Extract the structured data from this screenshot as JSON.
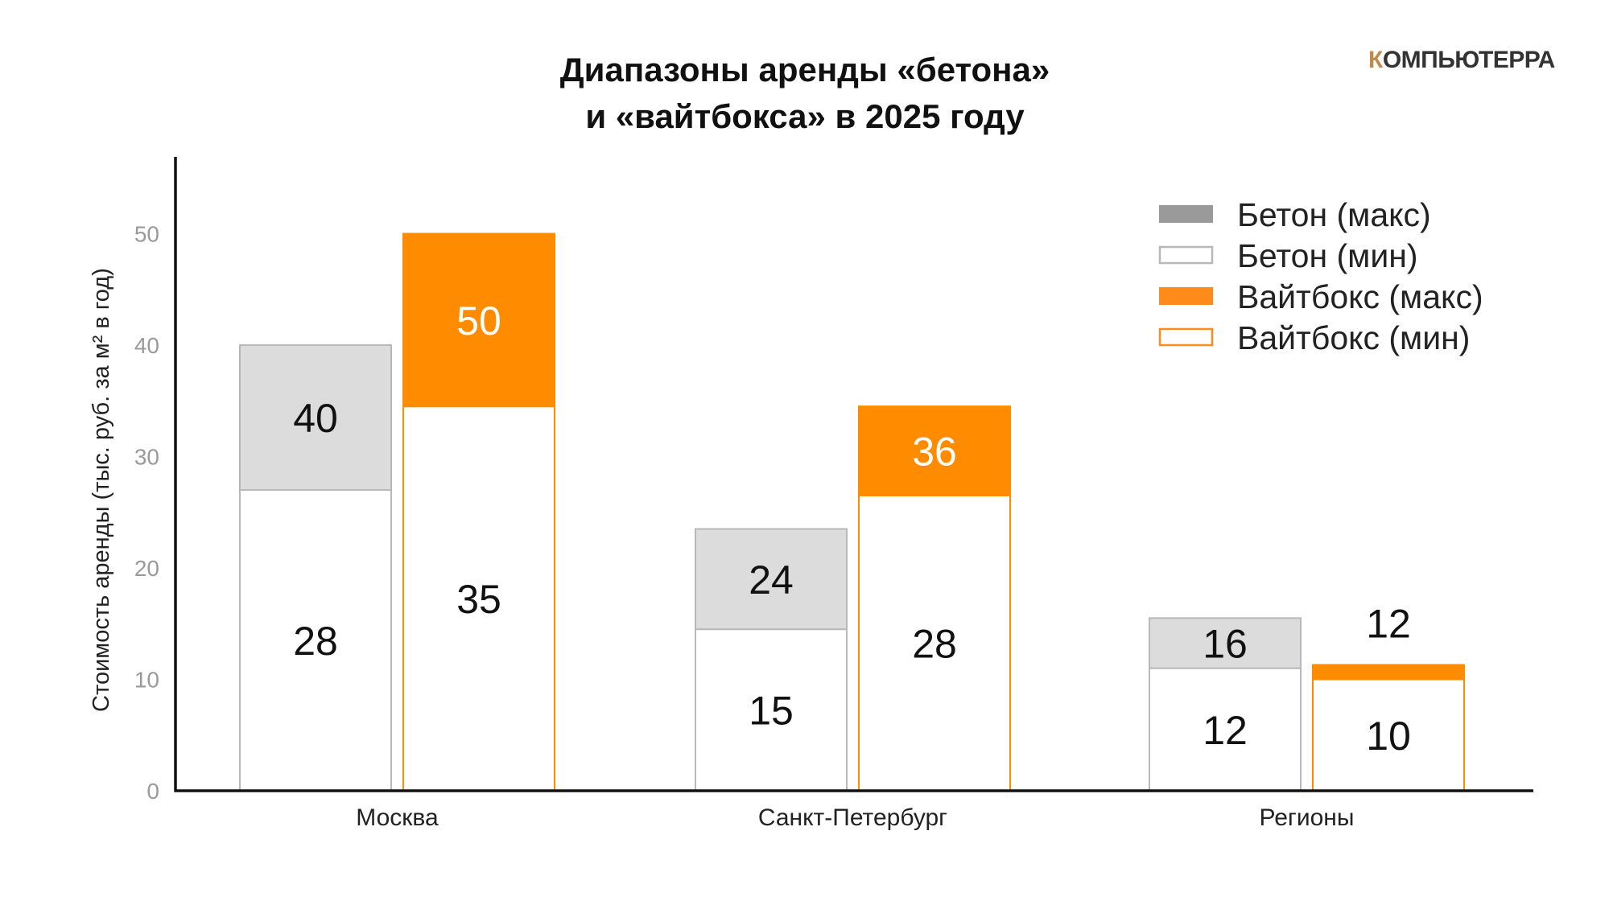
{
  "chart_data": {
    "type": "bar",
    "title_lines": [
      "Диапазоны аренды «бетона»",
      "и «вайтбокса» в 2025 году"
    ],
    "ylabel": "Стоимость аренды (тыс. руб. за м² в год)",
    "xlabel": "",
    "ylim": [
      0,
      55
    ],
    "yticks": [
      0,
      10,
      20,
      30,
      40,
      50
    ],
    "categories": [
      "Москва",
      "Санкт-Петербург",
      "Регионы"
    ],
    "series": [
      {
        "name": "Бетон",
        "min": [
          28,
          15,
          12
        ],
        "max": [
          40,
          24,
          16
        ],
        "min_display": [
          27,
          14.5,
          11
        ],
        "max_display": [
          40,
          23.5,
          15.5
        ]
      },
      {
        "name": "Вайтбокс",
        "min": [
          35,
          28,
          10
        ],
        "max": [
          50,
          36,
          12
        ],
        "min_display": [
          34.5,
          26.5,
          10
        ],
        "max_display": [
          50,
          34.5,
          11.3
        ]
      }
    ],
    "legend": [
      {
        "label": "Бетон (макс)",
        "style": "fill",
        "color": "#9a9a9a"
      },
      {
        "label": "Бетон (мин)",
        "style": "outline",
        "color": "#b8b8b8"
      },
      {
        "label": "Вайтбокс (макс)",
        "style": "fill",
        "color": "#ff8c1a"
      },
      {
        "label": "Вайтбокс (мин)",
        "style": "outline",
        "color": "#ff8c1a"
      }
    ],
    "legend_position": "top-right",
    "grid": false
  },
  "colors": {
    "beton_max_fill": "#dcdcdc",
    "beton_outline": "#b8b8b8",
    "white_max_fill": "#ff8c00",
    "axis": "#111111"
  },
  "brand": {
    "first": "К",
    "rest": "ОМПЬЮТЕРРА"
  }
}
